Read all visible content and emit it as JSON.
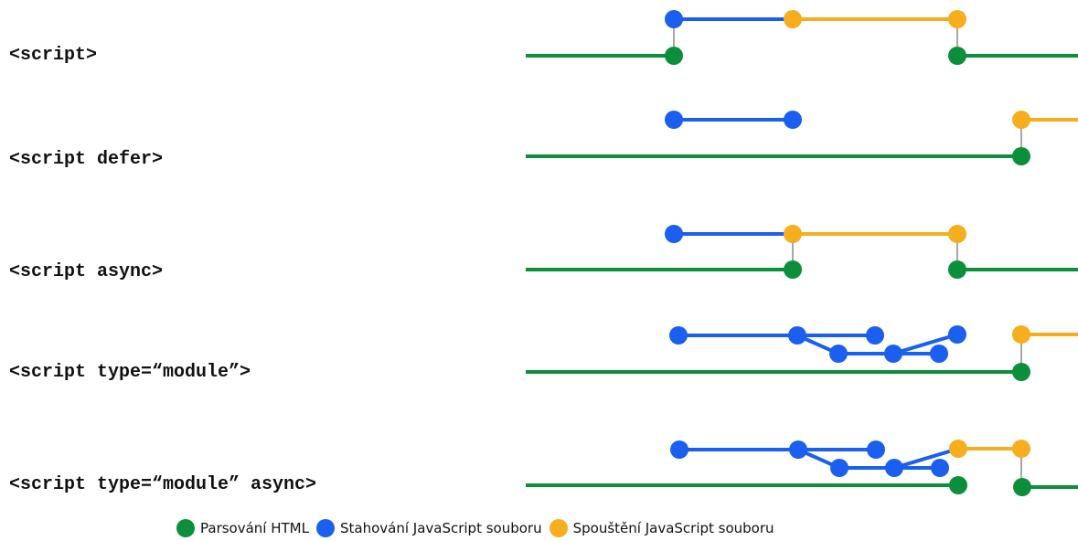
{
  "colors": {
    "parse": "#0b8f3a",
    "download": "#1a5ff0",
    "execute": "#f7ae1e",
    "connector": "#a8a8a8"
  },
  "legend": [
    {
      "key": "parse",
      "label": "Parsování HTML"
    },
    {
      "key": "download",
      "label": "Stahování JavaScript souboru"
    },
    {
      "key": "execute",
      "label": "Spouštění JavaScript souboru"
    }
  ],
  "rows": [
    {
      "label": "<script>"
    },
    {
      "label": "<script defer>"
    },
    {
      "label": "<script async>"
    },
    {
      "label": "<script type=“module”>"
    },
    {
      "label": "<script type=“module” async>"
    }
  ]
}
